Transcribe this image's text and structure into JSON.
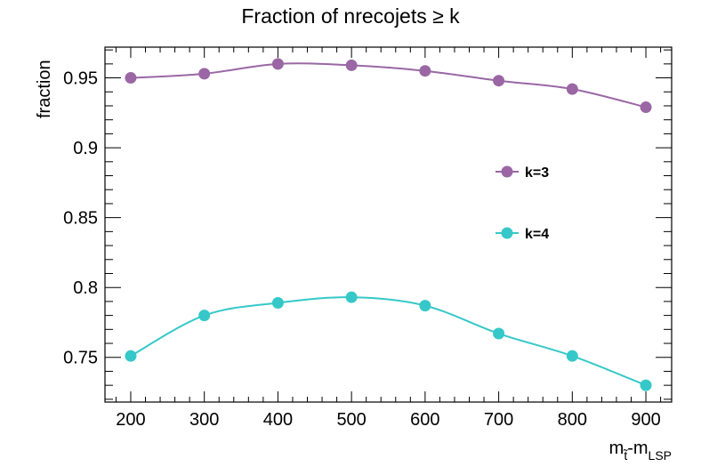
{
  "chart_data": {
    "type": "line",
    "title": "Fraction of nrecojets ≥ k",
    "ylabel": "fraction",
    "xlabel_main": "m",
    "xlabel_main_sub": "t̃",
    "xlabel_dash": "-m",
    "xlabel_sub": "LSP",
    "x": [
      200,
      300,
      400,
      500,
      600,
      700,
      800,
      900
    ],
    "xlim": [
      165,
      935
    ],
    "ylim": [
      0.718,
      0.972
    ],
    "xticks": [
      200,
      300,
      400,
      500,
      600,
      700,
      800,
      900
    ],
    "yticks": [
      0.75,
      0.8,
      0.85,
      0.9,
      0.95
    ],
    "ytick_labels": [
      "0.75",
      "0.8",
      "0.85",
      "0.9",
      "0.95"
    ],
    "grid": false,
    "legend_position": "right-middle",
    "series": [
      {
        "name": "k=3",
        "color": "#9a67a4",
        "values": [
          0.95,
          0.953,
          0.96,
          0.959,
          0.955,
          0.948,
          0.942,
          0.929
        ]
      },
      {
        "name": "k=4",
        "color": "#36c8c8",
        "values": [
          0.751,
          0.78,
          0.789,
          0.793,
          0.787,
          0.767,
          0.751,
          0.73
        ]
      }
    ]
  }
}
